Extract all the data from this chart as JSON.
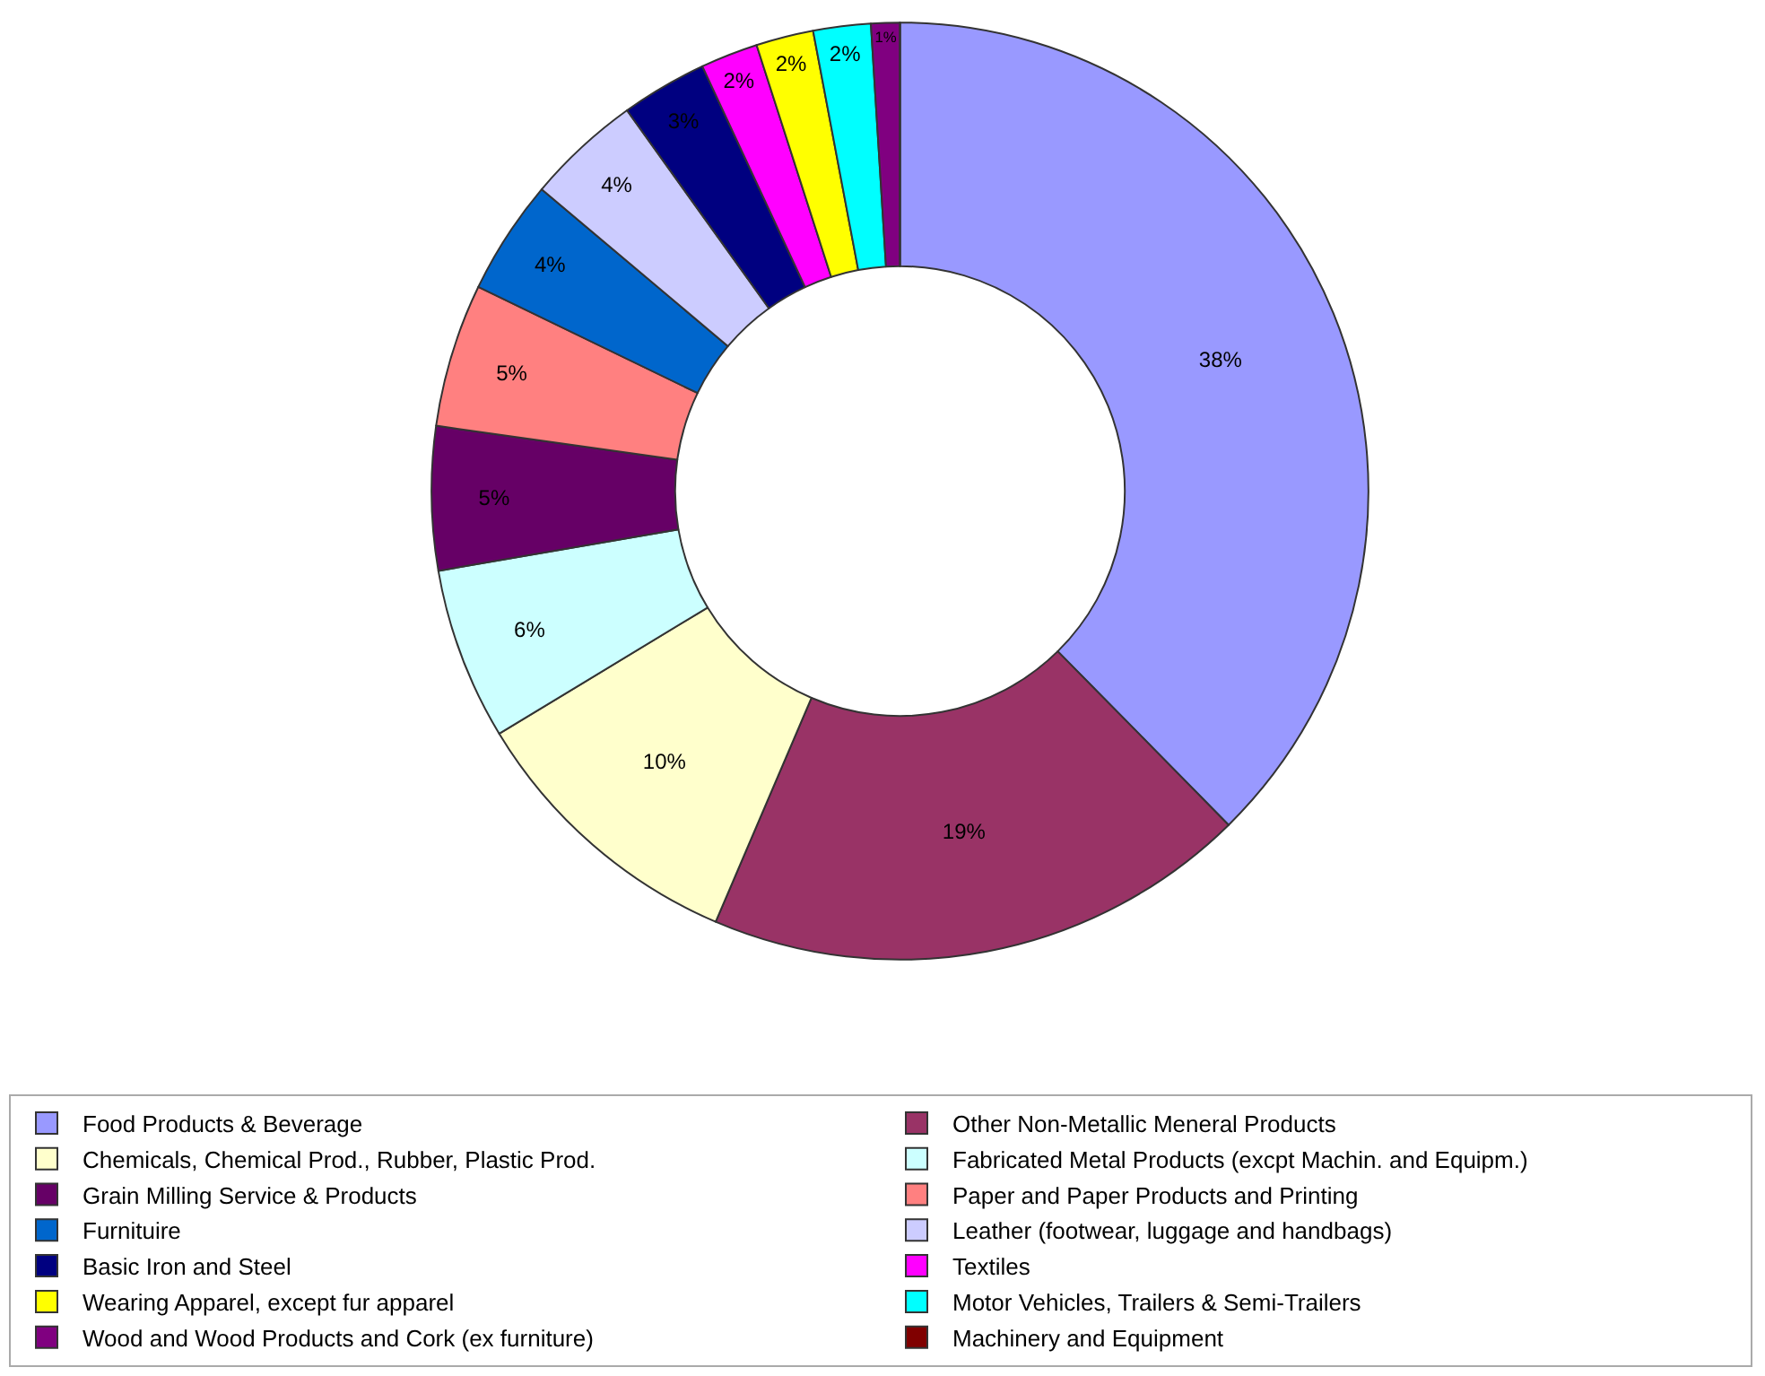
{
  "chart_data": {
    "type": "donut",
    "categories": [
      "Food Products & Beverage",
      "Other Non-Metallic Meneral Products",
      "Chemicals, Chemical Prod., Rubber, Plastic Prod.",
      "Fabricated Metal Products (excpt Machin. and Equipm.)",
      "Grain Milling Service & Products",
      "Paper and Paper Products and Printing",
      "Furnituire",
      "Leather (footwear, luggage and handbags)",
      "Basic Iron and Steel",
      "Textiles",
      "Wearing Apparel, except fur apparel",
      "Motor Vehicles, Trailers & Semi-Trailers",
      "Wood and Wood Products and Cork (ex furniture)",
      "Machinery and Equipment"
    ],
    "values": [
      38,
      19,
      10,
      6,
      5,
      5,
      4,
      4,
      3,
      2,
      2,
      2,
      1,
      0
    ],
    "value_labels": [
      "38%",
      "19%",
      "10%",
      "6%",
      "5%",
      "5%",
      "4%",
      "4%",
      "3%",
      "2%",
      "2%",
      "2%",
      "1%",
      null
    ],
    "colors": [
      "#9999ff",
      "#993366",
      "#ffffcc",
      "#ccffff",
      "#660066",
      "#ff8080",
      "#0066cc",
      "#ccccff",
      "#000080",
      "#ff00ff",
      "#ffff00",
      "#00ffff",
      "#800080",
      "#800000"
    ],
    "legend": "bottom"
  }
}
